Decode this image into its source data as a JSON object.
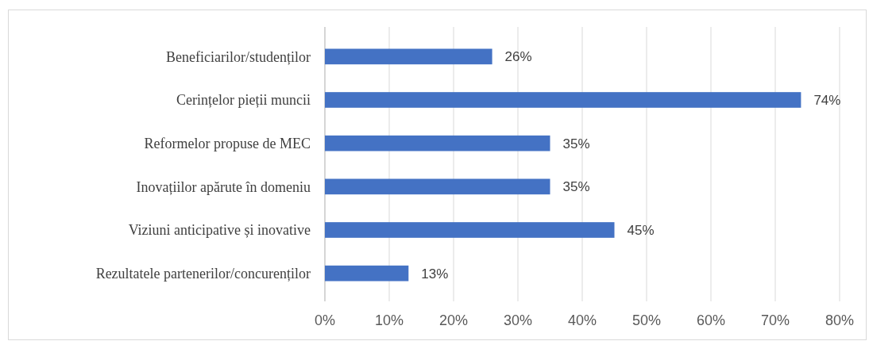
{
  "chart_data": {
    "type": "bar",
    "orientation": "horizontal",
    "categories": [
      "Beneficiarilor/studenților",
      "Cerințelor pieții muncii",
      "Reformelor propuse de MEC",
      "Inovațiilor apărute în domeniu",
      "Viziuni anticipative și inovative",
      "Rezultatele partenerilor/concurenților"
    ],
    "values": [
      26,
      74,
      35,
      35,
      45,
      13
    ],
    "value_labels": [
      "26%",
      "74%",
      "35%",
      "35%",
      "45%",
      "13%"
    ],
    "color": "#4472c4",
    "xlim": [
      0,
      80
    ],
    "xticks": [
      {
        "value": 0,
        "label": "0%"
      },
      {
        "value": 10,
        "label": "10%"
      },
      {
        "value": 20,
        "label": "20%"
      },
      {
        "value": 30,
        "label": "30%"
      },
      {
        "value": 40,
        "label": "40%"
      },
      {
        "value": 50,
        "label": "50%"
      },
      {
        "value": 60,
        "label": "60%"
      },
      {
        "value": 70,
        "label": "70%"
      },
      {
        "value": 80,
        "label": "80%"
      }
    ],
    "grid": "x"
  }
}
